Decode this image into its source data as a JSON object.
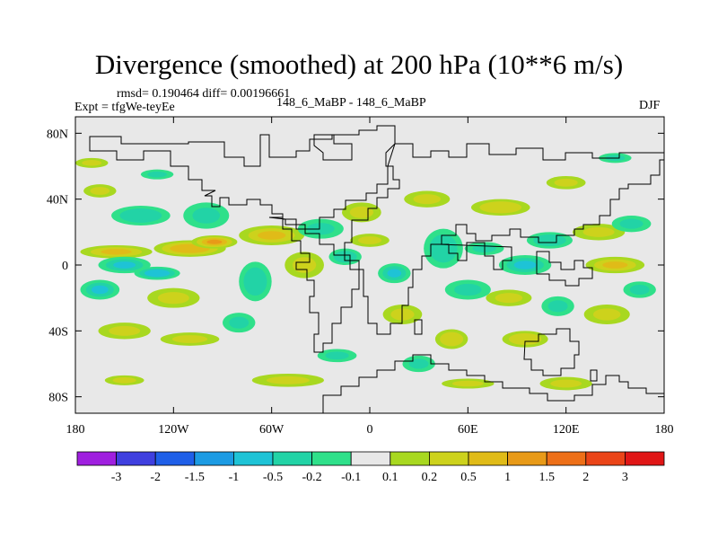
{
  "chart_data": {
    "type": "heatmap",
    "title": "Divergence (smoothed) at 200 hPa (10**6 m/s)",
    "stats_line": "rmsd= 0.190464 diff= 0.00196661",
    "expt_label": "Expt = tfgWe-teyEe",
    "case_label": "148_6_MaBP - 148_6_MaBP",
    "season": "DJF",
    "xlim": [
      -180,
      180
    ],
    "ylim": [
      -90,
      90
    ],
    "x_ticks": [
      {
        "value": -180,
        "label": "180"
      },
      {
        "value": -120,
        "label": "120W"
      },
      {
        "value": -60,
        "label": "60W"
      },
      {
        "value": 0,
        "label": "0"
      },
      {
        "value": 60,
        "label": "60E"
      },
      {
        "value": 120,
        "label": "120E"
      },
      {
        "value": 180,
        "label": "180"
      }
    ],
    "y_ticks": [
      {
        "value": 80,
        "label": "80N"
      },
      {
        "value": 40,
        "label": "40N"
      },
      {
        "value": 0,
        "label": "0"
      },
      {
        "value": -40,
        "label": "40S"
      },
      {
        "value": -80,
        "label": "80S"
      }
    ],
    "colorbar": {
      "labels": [
        "-3",
        "-2",
        "-1.5",
        "-1",
        "-0.5",
        "-0.2",
        "-0.1",
        "0.1",
        "0.2",
        "0.5",
        "1",
        "1.5",
        "2",
        "3"
      ],
      "colors": [
        "#9f1fdf",
        "#3f3fdf",
        "#1f5fe8",
        "#1c9be3",
        "#1ec3d6",
        "#22d3a6",
        "#2fe08a",
        "#e8e8e8",
        "#a8d820",
        "#cdd21c",
        "#e0bb18",
        "#e89a18",
        "#ed6f18",
        "#ea4418",
        "#e01616"
      ]
    },
    "regions": [
      {
        "lon": -155,
        "lat": 8,
        "rx": 22,
        "ry": 4,
        "v": 0.7
      },
      {
        "lon": -110,
        "lat": 10,
        "rx": 22,
        "ry": 5,
        "v": 0.9
      },
      {
        "lon": -95,
        "lat": 14,
        "rx": 14,
        "ry": 4,
        "v": 1.1
      },
      {
        "lon": -60,
        "lat": 18,
        "rx": 20,
        "ry": 6,
        "v": 0.6
      },
      {
        "lon": -140,
        "lat": 30,
        "rx": 18,
        "ry": 6,
        "v": -0.4
      },
      {
        "lon": -100,
        "lat": 30,
        "rx": 14,
        "ry": 8,
        "v": -0.35
      },
      {
        "lon": -150,
        "lat": 0,
        "rx": 16,
        "ry": 5,
        "v": -0.6
      },
      {
        "lon": -130,
        "lat": -5,
        "rx": 14,
        "ry": 4,
        "v": -0.8
      },
      {
        "lon": -165,
        "lat": -15,
        "rx": 12,
        "ry": 6,
        "v": -0.5
      },
      {
        "lon": -120,
        "lat": -20,
        "rx": 16,
        "ry": 6,
        "v": 0.35
      },
      {
        "lon": -165,
        "lat": 45,
        "rx": 10,
        "ry": 4,
        "v": 0.3
      },
      {
        "lon": -150,
        "lat": -40,
        "rx": 16,
        "ry": 5,
        "v": 0.25
      },
      {
        "lon": -110,
        "lat": -45,
        "rx": 18,
        "ry": 4,
        "v": 0.3
      },
      {
        "lon": -70,
        "lat": -10,
        "rx": 10,
        "ry": 12,
        "v": -0.45
      },
      {
        "lon": -40,
        "lat": 0,
        "rx": 12,
        "ry": 8,
        "v": 0.35
      },
      {
        "lon": -30,
        "lat": 22,
        "rx": 14,
        "ry": 6,
        "v": -0.3
      },
      {
        "lon": -80,
        "lat": -35,
        "rx": 10,
        "ry": 6,
        "v": -0.3
      },
      {
        "lon": -50,
        "lat": -70,
        "rx": 22,
        "ry": 4,
        "v": 0.25
      },
      {
        "lon": -150,
        "lat": -70,
        "rx": 12,
        "ry": 3,
        "v": 0.25
      },
      {
        "lon": -5,
        "lat": 32,
        "rx": 12,
        "ry": 6,
        "v": 0.35
      },
      {
        "lon": -15,
        "lat": 5,
        "rx": 10,
        "ry": 5,
        "v": -0.4
      },
      {
        "lon": 0,
        "lat": 15,
        "rx": 12,
        "ry": 4,
        "v": 0.3
      },
      {
        "lon": 15,
        "lat": -5,
        "rx": 10,
        "ry": 6,
        "v": -0.5
      },
      {
        "lon": 20,
        "lat": -30,
        "rx": 12,
        "ry": 6,
        "v": 0.35
      },
      {
        "lon": 35,
        "lat": 40,
        "rx": 14,
        "ry": 5,
        "v": 0.3
      },
      {
        "lon": 45,
        "lat": 10,
        "rx": 12,
        "ry": 12,
        "v": -0.45
      },
      {
        "lon": 60,
        "lat": -15,
        "rx": 14,
        "ry": 6,
        "v": -0.35
      },
      {
        "lon": 50,
        "lat": -45,
        "rx": 10,
        "ry": 6,
        "v": 0.4
      },
      {
        "lon": 80,
        "lat": 35,
        "rx": 18,
        "ry": 5,
        "v": 0.4
      },
      {
        "lon": 70,
        "lat": 10,
        "rx": 12,
        "ry": 4,
        "v": -0.3
      },
      {
        "lon": 95,
        "lat": 0,
        "rx": 16,
        "ry": 6,
        "v": -0.6
      },
      {
        "lon": 110,
        "lat": 15,
        "rx": 14,
        "ry": 5,
        "v": -0.4
      },
      {
        "lon": 85,
        "lat": -20,
        "rx": 14,
        "ry": 5,
        "v": 0.35
      },
      {
        "lon": 95,
        "lat": -45,
        "rx": 14,
        "ry": 5,
        "v": 0.4
      },
      {
        "lon": 115,
        "lat": -25,
        "rx": 10,
        "ry": 6,
        "v": -0.35
      },
      {
        "lon": 140,
        "lat": 20,
        "rx": 16,
        "ry": 5,
        "v": 0.35
      },
      {
        "lon": 150,
        "lat": 0,
        "rx": 18,
        "ry": 5,
        "v": 0.7
      },
      {
        "lon": 160,
        "lat": 25,
        "rx": 12,
        "ry": 5,
        "v": -0.3
      },
      {
        "lon": 145,
        "lat": -30,
        "rx": 14,
        "ry": 6,
        "v": 0.3
      },
      {
        "lon": 165,
        "lat": -15,
        "rx": 10,
        "ry": 5,
        "v": -0.3
      },
      {
        "lon": 120,
        "lat": 50,
        "rx": 12,
        "ry": 4,
        "v": 0.3
      },
      {
        "lon": 150,
        "lat": 65,
        "rx": 10,
        "ry": 3,
        "v": -0.25
      },
      {
        "lon": -170,
        "lat": 62,
        "rx": 10,
        "ry": 3,
        "v": 0.25
      },
      {
        "lon": 60,
        "lat": -72,
        "rx": 16,
        "ry": 3,
        "v": 0.25
      },
      {
        "lon": 120,
        "lat": -72,
        "rx": 16,
        "ry": 4,
        "v": 0.3
      },
      {
        "lon": 30,
        "lat": -60,
        "rx": 10,
        "ry": 5,
        "v": -0.3
      },
      {
        "lon": -20,
        "lat": -55,
        "rx": 12,
        "ry": 4,
        "v": -0.25
      },
      {
        "lon": -130,
        "lat": 55,
        "rx": 10,
        "ry": 3,
        "v": -0.25
      }
    ]
  }
}
